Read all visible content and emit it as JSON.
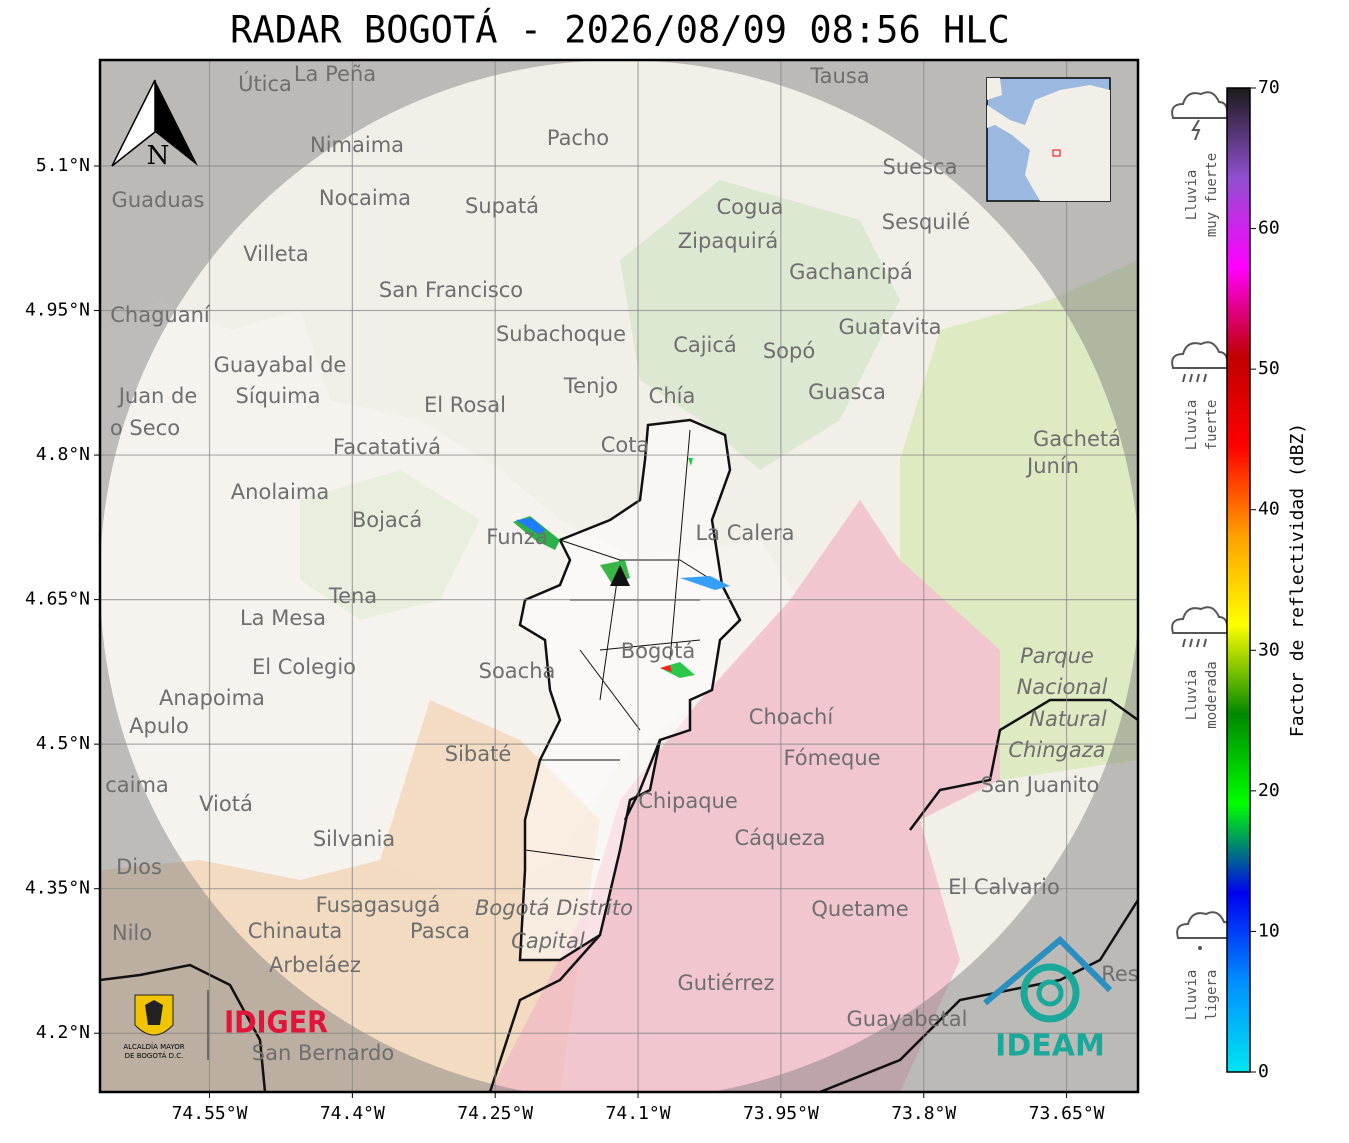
{
  "title": "RADAR BOGOTÁ - 2026/08/09 08:56 HLC",
  "map": {
    "xlim": [
      -74.665,
      -73.575
    ],
    "ylim": [
      4.139,
      5.21
    ],
    "xticks": [
      {
        "value": -74.55,
        "label": "74.55°W"
      },
      {
        "value": -74.4,
        "label": "74.4°W"
      },
      {
        "value": -74.25,
        "label": "74.25°W"
      },
      {
        "value": -74.1,
        "label": "74.1°W"
      },
      {
        "value": -73.95,
        "label": "73.95°W"
      },
      {
        "value": -73.8,
        "label": "73.8°W"
      },
      {
        "value": -73.65,
        "label": "73.65°W"
      }
    ],
    "yticks": [
      {
        "value": 5.1,
        "label": "5.1°N"
      },
      {
        "value": 4.95,
        "label": "4.95°N"
      },
      {
        "value": 4.8,
        "label": "4.8°N"
      },
      {
        "value": 4.65,
        "label": "4.65°N"
      },
      {
        "value": 4.5,
        "label": "4.5°N"
      },
      {
        "value": 4.35,
        "label": "4.35°N"
      },
      {
        "value": 4.2,
        "label": "4.2°N"
      }
    ],
    "grid": true,
    "north_label": "N",
    "places": [
      "Útica",
      "La Peña",
      "Tausa",
      "Pacho",
      "Nimaima",
      "Guaduas",
      "Nocaima",
      "Supatá",
      "Cogua",
      "Suesca",
      "Sesquilé",
      "Villeta",
      "Zipaquirá",
      "Gachancipá",
      "San Francisco",
      "Chaguaní",
      "Guatavita",
      "Subachoque",
      "Cajicá",
      "Sopó",
      "Guayabal de",
      "Síquima",
      "Tenjo",
      "Chía",
      "Guasca",
      "Juan de",
      "o Seco",
      "El Rosal",
      "Cota",
      "Gachetá",
      "Junín",
      "Facatativá",
      "Anolaima",
      "Bojacá",
      "Funza",
      "La Calera",
      "Tena",
      "La Mesa",
      "Bogotá",
      "Parque",
      "Nacional",
      "Natural",
      "Chingaza",
      "El Colegio",
      "Soacha",
      "Anapoima",
      "Apulo",
      "Choachí",
      "Fómeque",
      "Sibaté",
      "San Juanito",
      "caima",
      "Viotá",
      "Chipaque",
      "Silvania",
      "Cáqueza",
      "Dios",
      "El Calvario",
      "Fusagasugá",
      "Bogotá Distrito",
      "Quetame",
      "Nilo",
      "Chinauta",
      "Pasca",
      "Capital",
      "Arbeláez",
      "Gutiérrez",
      "Res",
      "Guayabetal",
      "San Bernardo"
    ]
  },
  "colorbar": {
    "label": "Factor de reflectividad (dBZ)",
    "ylim": [
      0,
      70
    ],
    "yticks": [
      0,
      10,
      20,
      30,
      40,
      50,
      60,
      70
    ],
    "colors": [
      "#00e5f0",
      "#0090ff",
      "#0000f0",
      "#00ff00",
      "#008800",
      "#ffff00",
      "#ffa000",
      "#ff0000",
      "#c00000",
      "#ff00ff",
      "#9050d0",
      "#1a1a1a"
    ]
  },
  "legend": [
    [
      "Lluvia",
      "muy fuerte"
    ],
    [
      "Lluvia",
      "fuerte"
    ],
    [
      "Lluvia",
      "moderada"
    ],
    [
      "Lluvia",
      "ligera"
    ]
  ],
  "logos": {
    "alcaldia": [
      "ALCALDÍA MAYOR",
      "DE BOGOTÁ D.C."
    ],
    "idiger": "IDIGER",
    "ideam": "IDEAM"
  }
}
